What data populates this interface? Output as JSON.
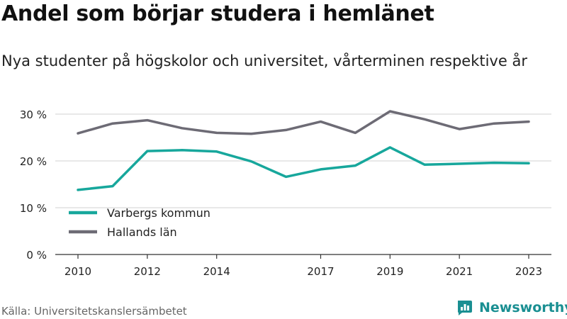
{
  "header": {
    "title": "Andel som börjar studera i hemlänet",
    "subtitle": "Nya studenter på högskolor och universitet, vårterminen respektive år"
  },
  "footer": {
    "source": "Källa: Universitetskanslersämbetet",
    "brand": "Newsworthy",
    "brand_icon": "newsworthy-logo-icon"
  },
  "colors": {
    "varberg": "#17a79c",
    "halland": "#6d6b75",
    "grid": "#d9d9d9",
    "axis": "#333333",
    "brand": "#1a8f92"
  },
  "chart_data": {
    "type": "line",
    "title": "Andel som börjar studera i hemlänet",
    "subtitle": "Nya studenter på högskolor och universitet, vårterminen respektive år",
    "x": [
      2010,
      2011,
      2012,
      2013,
      2014,
      2015,
      2016,
      2017,
      2018,
      2019,
      2020,
      2021,
      2022,
      2023
    ],
    "xticks": [
      2010,
      2012,
      2014,
      2017,
      2019,
      2021,
      2023
    ],
    "yticks": [
      0,
      10,
      20,
      30
    ],
    "ytick_labels": [
      "0 %",
      "10 %",
      "20 %",
      "30 %"
    ],
    "ylim": [
      0,
      30
    ],
    "xlim": [
      2010,
      2023
    ],
    "grid": true,
    "legend_position": "lower-left",
    "series": [
      {
        "name": "Varbergs kommun",
        "color": "#17a79c",
        "values": [
          13.8,
          14.6,
          22.1,
          22.3,
          22.0,
          19.9,
          16.6,
          18.2,
          19.0,
          22.9,
          19.2,
          19.4,
          19.6,
          19.5
        ]
      },
      {
        "name": "Hallands län",
        "color": "#6d6b75",
        "values": [
          25.9,
          28.0,
          28.7,
          27.0,
          26.0,
          25.8,
          26.6,
          28.4,
          26.0,
          30.6,
          28.9,
          26.8,
          28.0,
          28.4
        ]
      }
    ]
  }
}
